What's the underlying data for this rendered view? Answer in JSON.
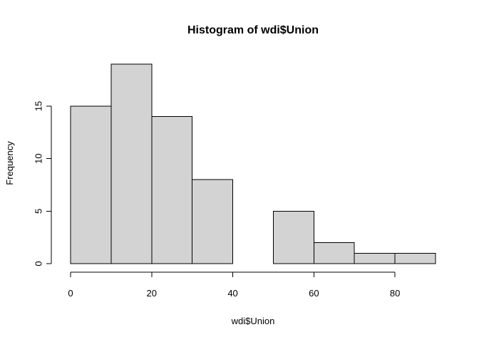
{
  "chart_data": {
    "type": "bar",
    "title": "Histogram of wdi$Union",
    "xlabel": "wdi$Union",
    "ylabel": "Frequency",
    "bins": [
      {
        "start": 0,
        "end": 10,
        "count": 15
      },
      {
        "start": 10,
        "end": 20,
        "count": 19
      },
      {
        "start": 20,
        "end": 30,
        "count": 14
      },
      {
        "start": 30,
        "end": 40,
        "count": 8
      },
      {
        "start": 40,
        "end": 50,
        "count": 0
      },
      {
        "start": 50,
        "end": 60,
        "count": 5
      },
      {
        "start": 60,
        "end": 70,
        "count": 2
      },
      {
        "start": 70,
        "end": 80,
        "count": 1
      },
      {
        "start": 80,
        "end": 90,
        "count": 1
      }
    ],
    "xlim": [
      0,
      90
    ],
    "ylim": [
      0,
      19
    ],
    "x_ticks": [
      0,
      20,
      40,
      60,
      80
    ],
    "y_ticks": [
      0,
      5,
      10,
      15
    ],
    "grid": false,
    "bar_fill": "#d3d3d3",
    "bar_stroke": "#000000"
  }
}
